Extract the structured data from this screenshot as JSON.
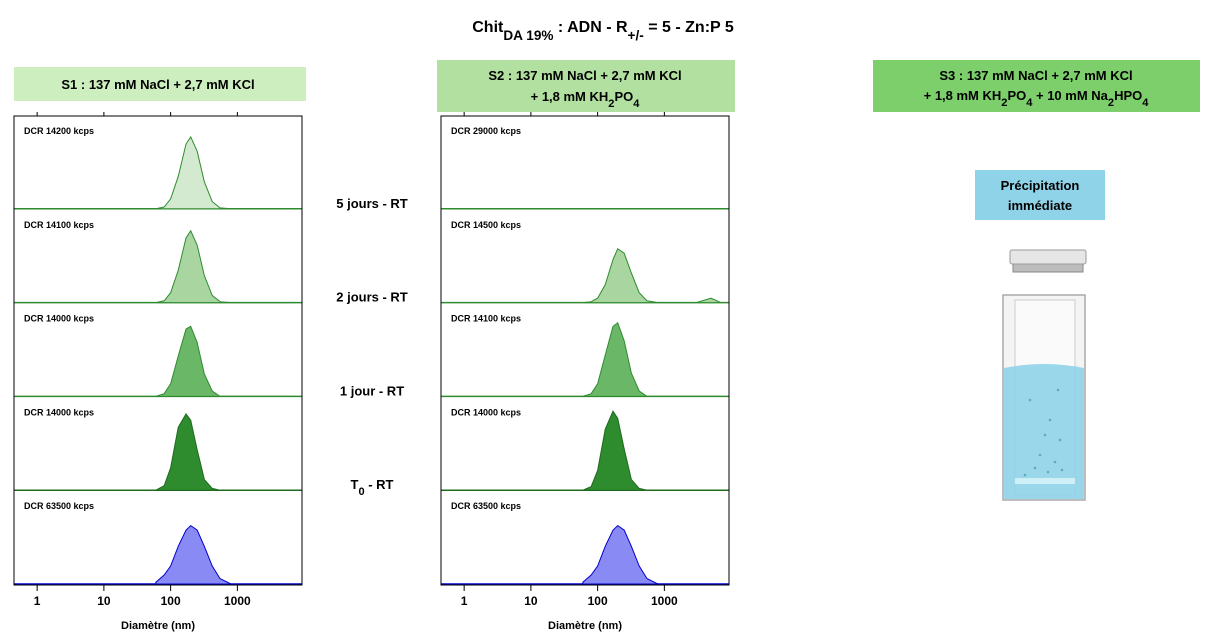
{
  "title": [
    {
      "text": "Chit"
    },
    {
      "text": "DA 19%",
      "sub": true
    },
    {
      "text": " : ADN - R"
    },
    {
      "text": "+/-",
      "sub": true
    },
    {
      "text": " = 5 - Zn:P 5"
    }
  ],
  "time_labels": [
    [
      {
        "text": "5 jours - RT"
      }
    ],
    [
      {
        "text": "2 jours - RT"
      }
    ],
    [
      {
        "text": "1 jour - RT"
      }
    ],
    [
      {
        "text": "T"
      },
      {
        "text": "0",
        "sub": true
      },
      {
        "text": " - RT"
      }
    ]
  ],
  "s3": {
    "header": [
      [
        {
          "text": "S3 : 137 mM NaCl + 2,7 mM KCl"
        }
      ],
      [
        {
          "text": "+ 1,8 mM KH"
        },
        {
          "text": "2",
          "sub": true
        },
        {
          "text": "PO"
        },
        {
          "text": "4",
          "sub": true
        },
        {
          "text": " + 10 mM Na"
        },
        {
          "text": "2",
          "sub": true
        },
        {
          "text": "HPO"
        },
        {
          "text": "4",
          "sub": true
        }
      ]
    ],
    "note": [
      "Précipitation",
      "immédiate"
    ]
  },
  "chart_data": [
    {
      "type": "area",
      "header": [
        [
          {
            "text": "S1 : 137 mM NaCl + 2,7 mM KCl"
          }
        ]
      ],
      "xlabel": "Diamètre (nm)",
      "log_x": true,
      "xlim": [
        0.45,
        9300
      ],
      "xticks": [
        1,
        10,
        100,
        1000
      ],
      "x": [
        60,
        80,
        100,
        130,
        170,
        200,
        250,
        320,
        420,
        550,
        800,
        3000,
        5000,
        7000
      ],
      "series": [
        {
          "name": "DCR 14200 kcps",
          "color": "#d4ead0",
          "line": "#2e8b2e",
          "values": [
            0,
            0.02,
            0.11,
            0.36,
            0.72,
            0.8,
            0.64,
            0.3,
            0.08,
            0.01,
            0,
            0,
            0,
            0
          ]
        },
        {
          "name": "DCR 14100 kcps",
          "color": "#a8d5a0",
          "line": "#2e8b2e",
          "values": [
            0,
            0.02,
            0.11,
            0.36,
            0.72,
            0.8,
            0.64,
            0.3,
            0.08,
            0.01,
            0,
            0,
            0,
            0
          ]
        },
        {
          "name": "DCR 14000 kcps",
          "color": "#6ab867",
          "line": "#2e8b2e",
          "values": [
            0,
            0.03,
            0.14,
            0.45,
            0.75,
            0.78,
            0.6,
            0.25,
            0.06,
            0,
            0,
            0,
            0,
            0
          ]
        },
        {
          "name": "DCR 14000 kcps",
          "color": "#2e8b2e",
          "line": "#1f6b1f",
          "values": [
            0,
            0.05,
            0.25,
            0.7,
            0.85,
            0.78,
            0.45,
            0.12,
            0.02,
            0,
            0,
            0,
            0,
            0
          ]
        },
        {
          "name": "DCR 63500 kcps",
          "color": "#8a8af5",
          "line": "#0000cc",
          "values": [
            0.02,
            0.1,
            0.2,
            0.42,
            0.6,
            0.65,
            0.6,
            0.42,
            0.2,
            0.06,
            0,
            0,
            0,
            0
          ]
        }
      ]
    },
    {
      "type": "area",
      "header": [
        [
          {
            "text": "S2 : 137 mM NaCl + 2,7 mM KCl"
          }
        ],
        [
          {
            "text": "+ 1,8 mM KH"
          },
          {
            "text": "2",
            "sub": true
          },
          {
            "text": "PO"
          },
          {
            "text": "4",
            "sub": true
          }
        ]
      ],
      "xlabel": "Diamètre (nm)",
      "log_x": true,
      "xlim": [
        0.45,
        9300
      ],
      "xticks": [
        1,
        10,
        100,
        1000
      ],
      "x": [
        60,
        80,
        100,
        130,
        170,
        200,
        250,
        320,
        420,
        550,
        800,
        3000,
        5000,
        7000
      ],
      "series": [
        {
          "name": "DCR 29000 kcps",
          "color": "#d4ead0",
          "line": "#2e8b2e",
          "values": [
            0,
            0,
            0,
            0,
            0,
            0,
            0,
            0,
            0,
            0,
            0,
            0,
            0,
            0
          ]
        },
        {
          "name": "DCR 14500 kcps",
          "color": "#a8d5a0",
          "line": "#2e8b2e",
          "values": [
            0,
            0.01,
            0.05,
            0.2,
            0.48,
            0.6,
            0.55,
            0.33,
            0.11,
            0.02,
            0,
            0,
            0.05,
            0
          ]
        },
        {
          "name": "DCR 14100 kcps",
          "color": "#6ab867",
          "line": "#2e8b2e",
          "values": [
            0,
            0.03,
            0.14,
            0.46,
            0.78,
            0.82,
            0.62,
            0.26,
            0.06,
            0,
            0,
            0,
            0,
            0
          ]
        },
        {
          "name": "DCR 14000 kcps",
          "color": "#2e8b2e",
          "line": "#1f6b1f",
          "values": [
            0,
            0.04,
            0.22,
            0.68,
            0.88,
            0.8,
            0.46,
            0.12,
            0.02,
            0,
            0,
            0,
            0,
            0
          ]
        },
        {
          "name": "DCR 63500 kcps",
          "color": "#8a8af5",
          "line": "#0000cc",
          "values": [
            0.02,
            0.1,
            0.2,
            0.42,
            0.6,
            0.65,
            0.6,
            0.42,
            0.2,
            0.06,
            0,
            0,
            0,
            0
          ]
        }
      ]
    }
  ]
}
